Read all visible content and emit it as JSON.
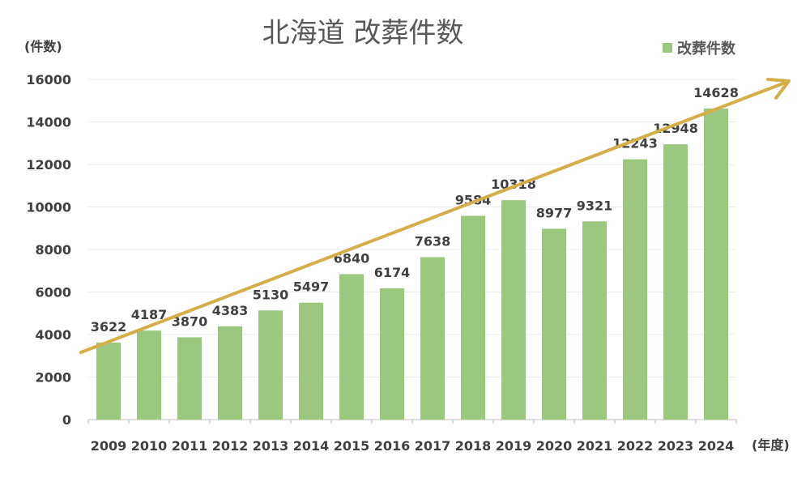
{
  "chart_data": {
    "type": "bar",
    "title": "北海道 改葬件数",
    "ylabel": "(件数)",
    "xlabel": "(年度)",
    "categories": [
      "2009",
      "2010",
      "2011",
      "2012",
      "2013",
      "2014",
      "2015",
      "2016",
      "2017",
      "2018",
      "2019",
      "2020",
      "2021",
      "2022",
      "2023",
      "2024"
    ],
    "series": [
      {
        "name": "改葬件数",
        "values": [
          3622,
          4187,
          3870,
          4383,
          5130,
          5497,
          6840,
          6174,
          7638,
          9584,
          10318,
          8977,
          9321,
          12243,
          12948,
          14628
        ]
      }
    ],
    "ylim": [
      0,
      16000
    ],
    "yticks": [
      0,
      2000,
      4000,
      6000,
      8000,
      10000,
      12000,
      14000,
      16000
    ],
    "grid": true,
    "legend_position": "top-right",
    "data_labels": true,
    "annotation": "upward trend arrow",
    "colors": {
      "bar": "#9bc77f",
      "arrow": "#d4ae48",
      "grid": "#ececec",
      "axis": "#bfbfbf"
    }
  }
}
